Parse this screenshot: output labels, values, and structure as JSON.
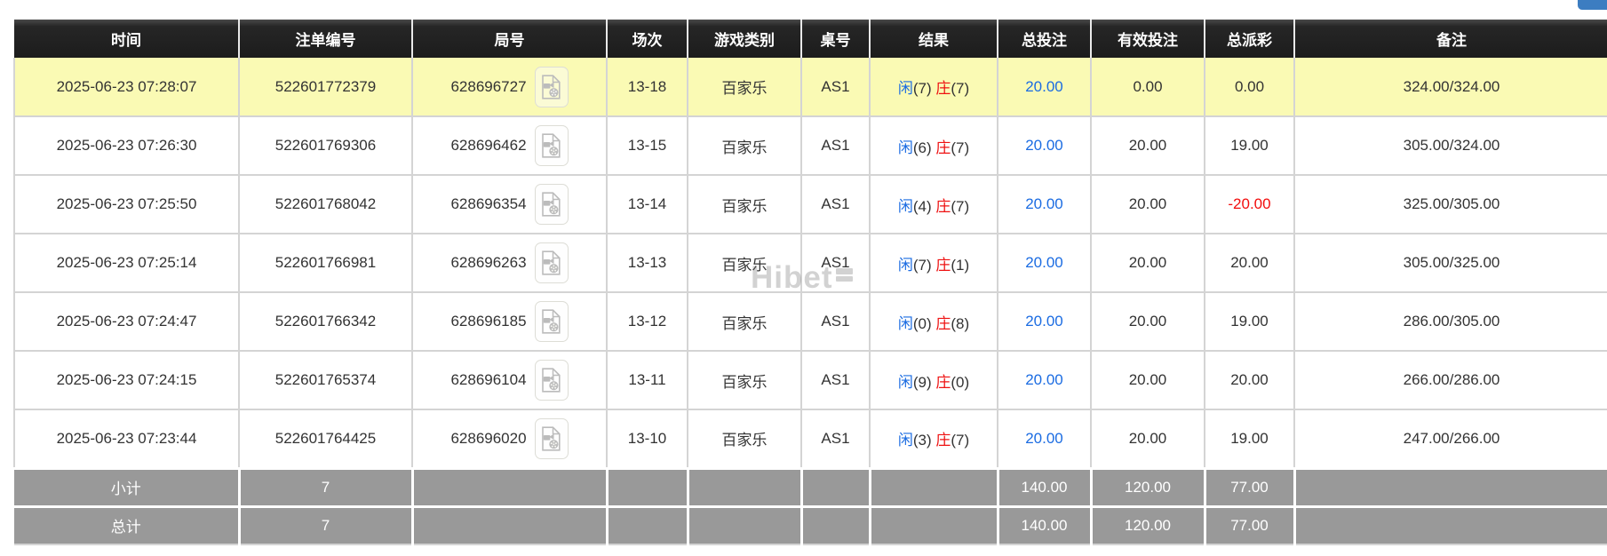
{
  "page": {
    "top_button_color": "#3c7dc1",
    "highlight_row_color": "#fafab4",
    "summary_row_color": "#999999",
    "bet_amount_color": "#1b6ce2",
    "negative_color": "#f20d0d",
    "player_color": "#1b6ce2",
    "banker_color": "#ee1111"
  },
  "watermark": {
    "text": "Hibet"
  },
  "table": {
    "player_label": "闲",
    "banker_label": "庄",
    "headers": [
      {
        "key": "time",
        "label": "时间"
      },
      {
        "key": "bet_id",
        "label": "注单编号"
      },
      {
        "key": "round",
        "label": "局号"
      },
      {
        "key": "session",
        "label": "场次"
      },
      {
        "key": "game",
        "label": "游戏类别"
      },
      {
        "key": "table_no",
        "label": "桌号"
      },
      {
        "key": "result",
        "label": "结果"
      },
      {
        "key": "total_bet",
        "label": "总投注"
      },
      {
        "key": "valid_bet",
        "label": "有效投注"
      },
      {
        "key": "payout",
        "label": "总派彩"
      },
      {
        "key": "remark",
        "label": "备注"
      }
    ],
    "rows": [
      {
        "time": "2025-06-23 07:28:07",
        "bet_id": "522601772379",
        "round": "628696727",
        "session": "13-18",
        "game": "百家乐",
        "table_no": "AS1",
        "result": {
          "player": "7",
          "banker": "7"
        },
        "total_bet": "20.00",
        "valid_bet": "0.00",
        "payout": "0.00",
        "remark": "324.00/324.00",
        "highlight": true
      },
      {
        "time": "2025-06-23 07:26:30",
        "bet_id": "522601769306",
        "round": "628696462",
        "session": "13-15",
        "game": "百家乐",
        "table_no": "AS1",
        "result": {
          "player": "6",
          "banker": "7"
        },
        "total_bet": "20.00",
        "valid_bet": "20.00",
        "payout": "19.00",
        "remark": "305.00/324.00",
        "highlight": false
      },
      {
        "time": "2025-06-23 07:25:50",
        "bet_id": "522601768042",
        "round": "628696354",
        "session": "13-14",
        "game": "百家乐",
        "table_no": "AS1",
        "result": {
          "player": "4",
          "banker": "7"
        },
        "total_bet": "20.00",
        "valid_bet": "20.00",
        "payout": "-20.00",
        "remark": "325.00/305.00",
        "highlight": false
      },
      {
        "time": "2025-06-23 07:25:14",
        "bet_id": "522601766981",
        "round": "628696263",
        "session": "13-13",
        "game": "百家乐",
        "table_no": "AS1",
        "result": {
          "player": "7",
          "banker": "1"
        },
        "total_bet": "20.00",
        "valid_bet": "20.00",
        "payout": "20.00",
        "remark": "305.00/325.00",
        "highlight": false
      },
      {
        "time": "2025-06-23 07:24:47",
        "bet_id": "522601766342",
        "round": "628696185",
        "session": "13-12",
        "game": "百家乐",
        "table_no": "AS1",
        "result": {
          "player": "0",
          "banker": "8"
        },
        "total_bet": "20.00",
        "valid_bet": "20.00",
        "payout": "19.00",
        "remark": "286.00/305.00",
        "highlight": false
      },
      {
        "time": "2025-06-23 07:24:15",
        "bet_id": "522601765374",
        "round": "628696104",
        "session": "13-11",
        "game": "百家乐",
        "table_no": "AS1",
        "result": {
          "player": "9",
          "banker": "0"
        },
        "total_bet": "20.00",
        "valid_bet": "20.00",
        "payout": "20.00",
        "remark": "266.00/286.00",
        "highlight": false
      },
      {
        "time": "2025-06-23 07:23:44",
        "bet_id": "522601764425",
        "round": "628696020",
        "session": "13-10",
        "game": "百家乐",
        "table_no": "AS1",
        "result": {
          "player": "3",
          "banker": "7"
        },
        "total_bet": "20.00",
        "valid_bet": "20.00",
        "payout": "19.00",
        "remark": "247.00/266.00",
        "highlight": false
      }
    ],
    "summary_rows": [
      {
        "label": "小计",
        "count": "7",
        "total_bet": "140.00",
        "valid_bet": "120.00",
        "payout": "77.00"
      },
      {
        "label": "总计",
        "count": "7",
        "total_bet": "140.00",
        "valid_bet": "120.00",
        "payout": "77.00"
      }
    ]
  }
}
